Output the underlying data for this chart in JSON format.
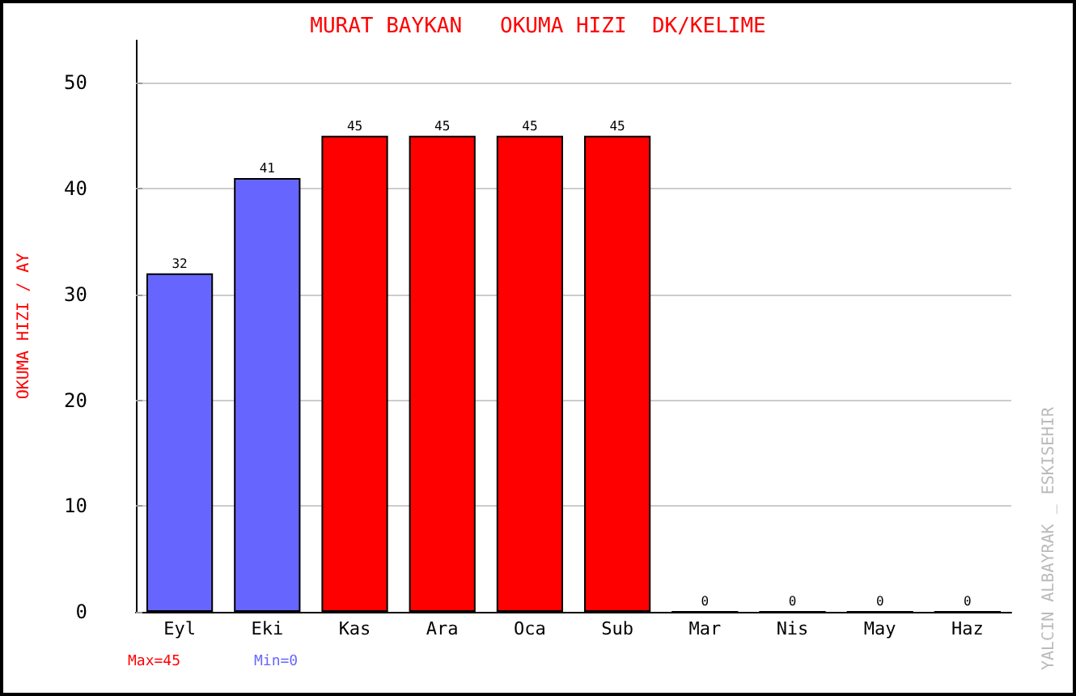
{
  "chart_data": {
    "type": "bar",
    "title": "MURAT BAYKAN   OKUMA HIZI  DK/KELIME",
    "ylabel": "OKUMA HIZI / AY",
    "categories": [
      "Eyl",
      "Eki",
      "Kas",
      "Ara",
      "Oca",
      "Sub",
      "Mar",
      "Nis",
      "May",
      "Haz"
    ],
    "values": [
      32,
      41,
      45,
      45,
      45,
      45,
      0,
      0,
      0,
      0
    ],
    "colors": [
      "#6666ff",
      "#6666ff",
      "#ff0000",
      "#ff0000",
      "#ff0000",
      "#ff0000",
      "#ff0000",
      "#ff0000",
      "#ff0000",
      "#ff0000"
    ],
    "ylim": [
      0,
      54
    ],
    "yticks": [
      0,
      10,
      20,
      30,
      40,
      50
    ],
    "grid": "y",
    "data_labels": true,
    "annotations": [
      "Max=45",
      "Min=0",
      "YALCIN ALBAYRAK _ ESKISEHIR"
    ]
  }
}
